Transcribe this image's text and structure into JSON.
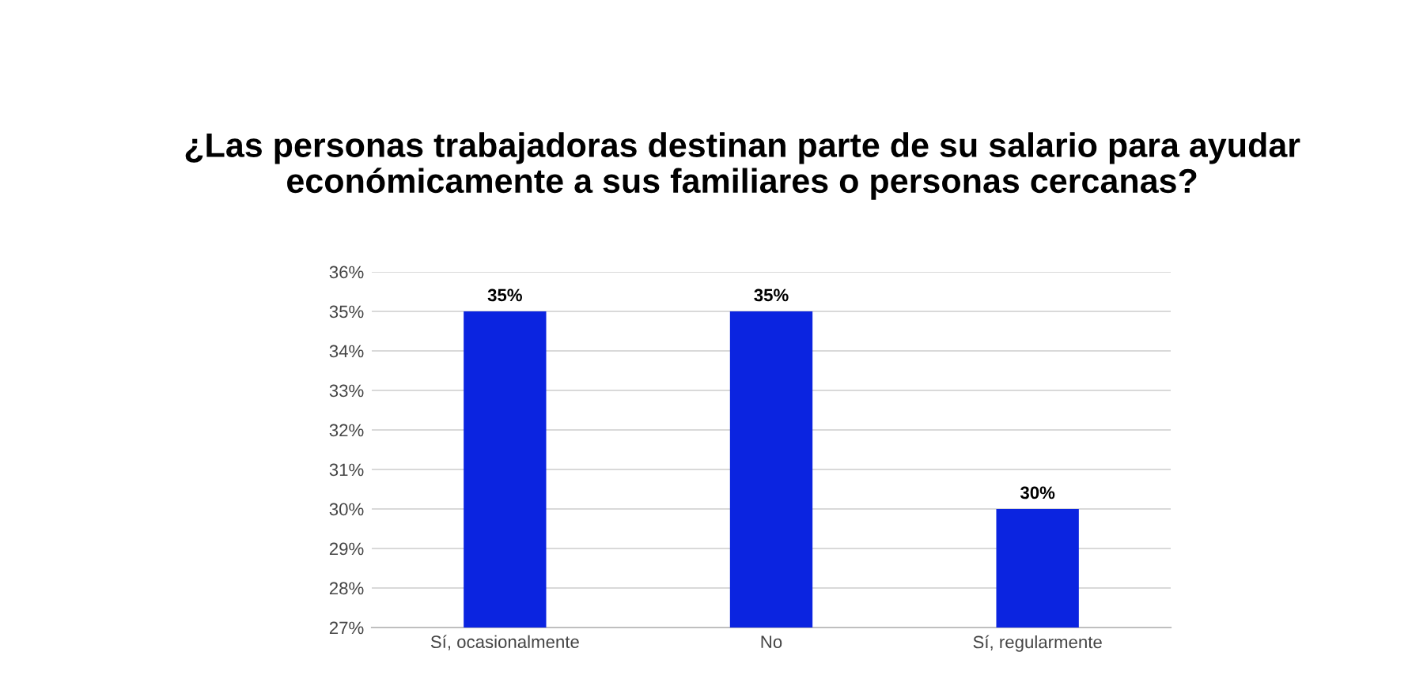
{
  "chart_data": {
    "type": "bar",
    "title": "¿Las personas trabajadoras destinan parte de su salario para ayudar\neconómicamente a sus familiares o personas cercanas?",
    "categories": [
      "Sí, ocasionalmente",
      "No",
      "Sí, regularmente"
    ],
    "values": [
      35,
      35,
      30
    ],
    "color": "#0b24e0",
    "value_labels": [
      "35%",
      "35%",
      "30%"
    ],
    "ylim": [
      27,
      36
    ],
    "yticks": [
      {
        "value": 27,
        "label": "27%"
      },
      {
        "value": 28,
        "label": "28%"
      },
      {
        "value": 29,
        "label": "29%"
      },
      {
        "value": 30,
        "label": "30%"
      },
      {
        "value": 31,
        "label": "31%"
      },
      {
        "value": 32,
        "label": "32%"
      },
      {
        "value": 33,
        "label": "33%"
      },
      {
        "value": 34,
        "label": "34%"
      },
      {
        "value": 35,
        "label": "35%"
      },
      {
        "value": 36,
        "label": "36%"
      }
    ],
    "grid": "y"
  }
}
